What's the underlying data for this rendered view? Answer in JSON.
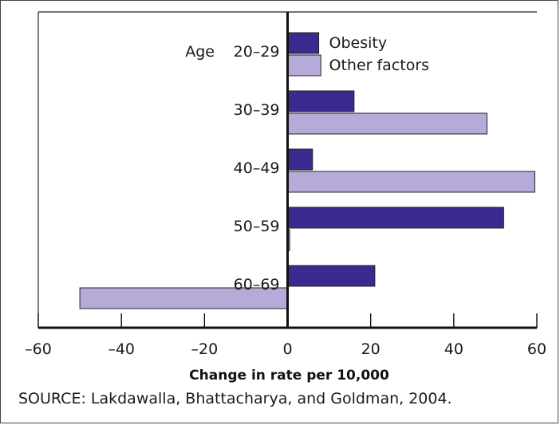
{
  "chart_data": {
    "type": "bar",
    "orientation": "horizontal",
    "category_title": "Age",
    "categories": [
      "20–29",
      "30–39",
      "40–49",
      "50–59",
      "60–69"
    ],
    "series": [
      {
        "name": "Obesity",
        "values": [
          7.5,
          16,
          6,
          52,
          21
        ],
        "color": "#3b2a8f"
      },
      {
        "name": "Other factors",
        "values": [
          8,
          48,
          59.5,
          0.5,
          -50
        ],
        "color": "#b5aad8"
      }
    ],
    "xlim": [
      -60,
      60
    ],
    "x_ticks": [
      -60,
      -40,
      -20,
      0,
      20,
      40,
      60
    ],
    "x_tick_labels": [
      "–60",
      "–40",
      "–20",
      "0",
      "20",
      "40",
      "60"
    ],
    "xlabel": "Change in rate per 10,000",
    "ylabel": "",
    "title": "",
    "legend": "inline-top-right-of-zero",
    "grid": false
  },
  "source_text": "SOURCE: Lakdawalla, Bhattacharya, and Goldman, 2004."
}
